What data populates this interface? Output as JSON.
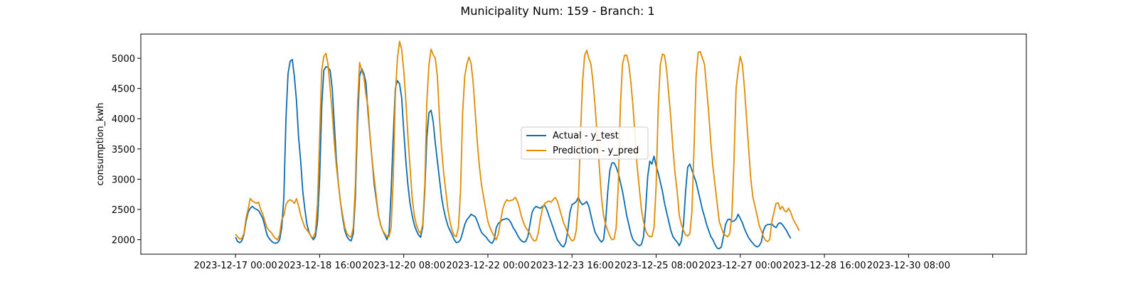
{
  "chart_data": {
    "type": "line",
    "title": "Municipality Num: 159 - Branch: 1",
    "xlabel": "",
    "ylabel": "consumption_kwh",
    "ylim": [
      1760,
      5400
    ],
    "yticks": [
      2000,
      2500,
      3000,
      3500,
      4000,
      4500,
      5000
    ],
    "x_start": "2023-12-17 00:00",
    "x_step_hours": 1,
    "xlim_hours": [
      -45,
      376
    ],
    "xticks": [
      {
        "hour": 0,
        "label": "2023-12-17 00:00"
      },
      {
        "hour": 40,
        "label": "2023-12-18 16:00"
      },
      {
        "hour": 80,
        "label": "2023-12-20 08:00"
      },
      {
        "hour": 120,
        "label": "2023-12-22 00:00"
      },
      {
        "hour": 160,
        "label": "2023-12-23 16:00"
      },
      {
        "hour": 200,
        "label": "2023-12-25 08:00"
      },
      {
        "hour": 240,
        "label": "2023-12-27 00:00"
      },
      {
        "hour": 280,
        "label": "2023-12-28 16:00"
      },
      {
        "hour": 320,
        "label": "2023-12-30 08:00"
      },
      {
        "hour": 360,
        "label": ""
      }
    ],
    "legend_position": "center",
    "grid": false,
    "series": [
      {
        "name": "Actual - y_test",
        "color": "#0a6cb0",
        "values": [
          2040,
          1970,
          1950,
          1980,
          2080,
          2300,
          2450,
          2520,
          2550,
          2520,
          2500,
          2480,
          2420,
          2350,
          2220,
          2080,
          2020,
          1980,
          1950,
          1940,
          1950,
          2000,
          2200,
          2700,
          4000,
          4750,
          4950,
          4980,
          4700,
          4300,
          3700,
          3300,
          2800,
          2500,
          2250,
          2120,
          2050,
          2000,
          2050,
          2300,
          3000,
          4200,
          4800,
          4860,
          4850,
          4800,
          4500,
          3900,
          3300,
          2900,
          2600,
          2350,
          2150,
          2050,
          2000,
          1980,
          2100,
          2700,
          3900,
          4700,
          4830,
          4750,
          4600,
          4100,
          3700,
          3300,
          2900,
          2650,
          2400,
          2250,
          2150,
          2080,
          2000,
          2100,
          2800,
          3700,
          4500,
          4630,
          4580,
          4350,
          3800,
          3300,
          2900,
          2600,
          2400,
          2250,
          2150,
          2080,
          2040,
          2200,
          2800,
          3700,
          4100,
          4140,
          3950,
          3600,
          3300,
          3000,
          2700,
          2500,
          2350,
          2230,
          2150,
          2080,
          2000,
          1950,
          1960,
          2000,
          2120,
          2250,
          2330,
          2370,
          2420,
          2400,
          2380,
          2300,
          2200,
          2120,
          2080,
          2050,
          2000,
          1960,
          1940,
          2000,
          2200,
          2270,
          2300,
          2330,
          2340,
          2350,
          2330,
          2280,
          2200,
          2150,
          2080,
          2020,
          1980,
          1960,
          1970,
          2050,
          2250,
          2450,
          2520,
          2550,
          2530,
          2520,
          2550,
          2570,
          2500,
          2400,
          2300,
          2200,
          2100,
          2000,
          1950,
          1900,
          1880,
          1950,
          2150,
          2450,
          2580,
          2600,
          2630,
          2700,
          2620,
          2580,
          2600,
          2630,
          2550,
          2400,
          2250,
          2120,
          2060,
          2000,
          1960,
          2000,
          2300,
          2800,
          3150,
          3270,
          3270,
          3200,
          3100,
          2950,
          2800,
          2600,
          2400,
          2250,
          2100,
          2000,
          1960,
          1920,
          1900,
          1920,
          2050,
          2500,
          3050,
          3300,
          3250,
          3380,
          3220,
          3100,
          2950,
          2800,
          2600,
          2450,
          2300,
          2150,
          2050,
          2000,
          1960,
          1900,
          1980,
          2250,
          2800,
          3200,
          3250,
          3150,
          3050,
          2950,
          2800,
          2650,
          2500,
          2380,
          2250,
          2150,
          2050,
          2000,
          1920,
          1860,
          1850,
          1880,
          2050,
          2250,
          2330,
          2340,
          2300,
          2310,
          2340,
          2420,
          2350,
          2280,
          2180,
          2100,
          2030,
          1980,
          1940,
          1900,
          1880,
          1900,
          1960,
          2150,
          2230,
          2250,
          2250,
          2260,
          2220,
          2200,
          2260,
          2280,
          2250,
          2200,
          2150,
          2080,
          2020
        ]
      },
      {
        "name": "Prediction - y_pred",
        "color": "#e08b00",
        "values": [
          2090,
          2050,
          2010,
          2020,
          2100,
          2350,
          2500,
          2680,
          2640,
          2620,
          2600,
          2620,
          2500,
          2420,
          2300,
          2200,
          2150,
          2120,
          2060,
          2020,
          2000,
          2080,
          2330,
          2400,
          2580,
          2640,
          2660,
          2640,
          2600,
          2680,
          2560,
          2400,
          2300,
          2200,
          2160,
          2110,
          2050,
          2030,
          2130,
          2600,
          3700,
          4800,
          5030,
          5080,
          4900,
          4500,
          4100,
          3600,
          3200,
          2900,
          2600,
          2400,
          2200,
          2100,
          2060,
          2040,
          2200,
          2900,
          4200,
          4930,
          4800,
          4700,
          4400,
          4200,
          3700,
          3300,
          3000,
          2700,
          2400,
          2250,
          2150,
          2100,
          2050,
          2050,
          2200,
          3000,
          4400,
          5000,
          5280,
          5150,
          4800,
          4300,
          3700,
          3200,
          2700,
          2400,
          2250,
          2150,
          2100,
          2250,
          2900,
          4300,
          4900,
          5150,
          5060,
          5000,
          4700,
          4000,
          3500,
          3100,
          2800,
          2500,
          2300,
          2150,
          2070,
          2050,
          2200,
          2800,
          4100,
          4700,
          4900,
          5020,
          4920,
          4600,
          4100,
          3600,
          3200,
          2900,
          2700,
          2500,
          2300,
          2200,
          2120,
          2060,
          2000,
          2100,
          2300,
          2500,
          2600,
          2660,
          2640,
          2650,
          2660,
          2700,
          2640,
          2520,
          2380,
          2280,
          2200,
          2150,
          2100,
          2020,
          1980,
          1990,
          2120,
          2350,
          2520,
          2600,
          2620,
          2640,
          2620,
          2660,
          2700,
          2640,
          2520,
          2400,
          2280,
          2200,
          2100,
          2030,
          1980,
          2000,
          2150,
          2600,
          3700,
          4600,
          5050,
          5130,
          5000,
          4900,
          4600,
          4200,
          3700,
          3200,
          2700,
          2400,
          2250,
          2150,
          2060,
          2000,
          2010,
          2200,
          2900,
          4200,
          4900,
          5050,
          5050,
          4900,
          4600,
          4200,
          3700,
          3200,
          2850,
          2500,
          2300,
          2150,
          2080,
          2050,
          2050,
          2200,
          2900,
          4200,
          4900,
          5070,
          5050,
          4800,
          4400,
          4000,
          3500,
          3100,
          2800,
          2400,
          2250,
          2150,
          2080,
          2060,
          2100,
          2450,
          3500,
          4700,
          5100,
          5110,
          5000,
          4900,
          4500,
          4100,
          3600,
          3200,
          2900,
          2600,
          2300,
          2200,
          2100,
          2070,
          2050,
          2100,
          2400,
          3300,
          4500,
          4800,
          5030,
          4900,
          4500,
          4000,
          3500,
          3000,
          2700,
          2550,
          2400,
          2230,
          2150,
          2050,
          1990,
          1970,
          2000,
          2300,
          2450,
          2600,
          2610,
          2500,
          2550,
          2480,
          2460,
          2520,
          2450,
          2350,
          2280,
          2220,
          2150
        ]
      }
    ]
  }
}
